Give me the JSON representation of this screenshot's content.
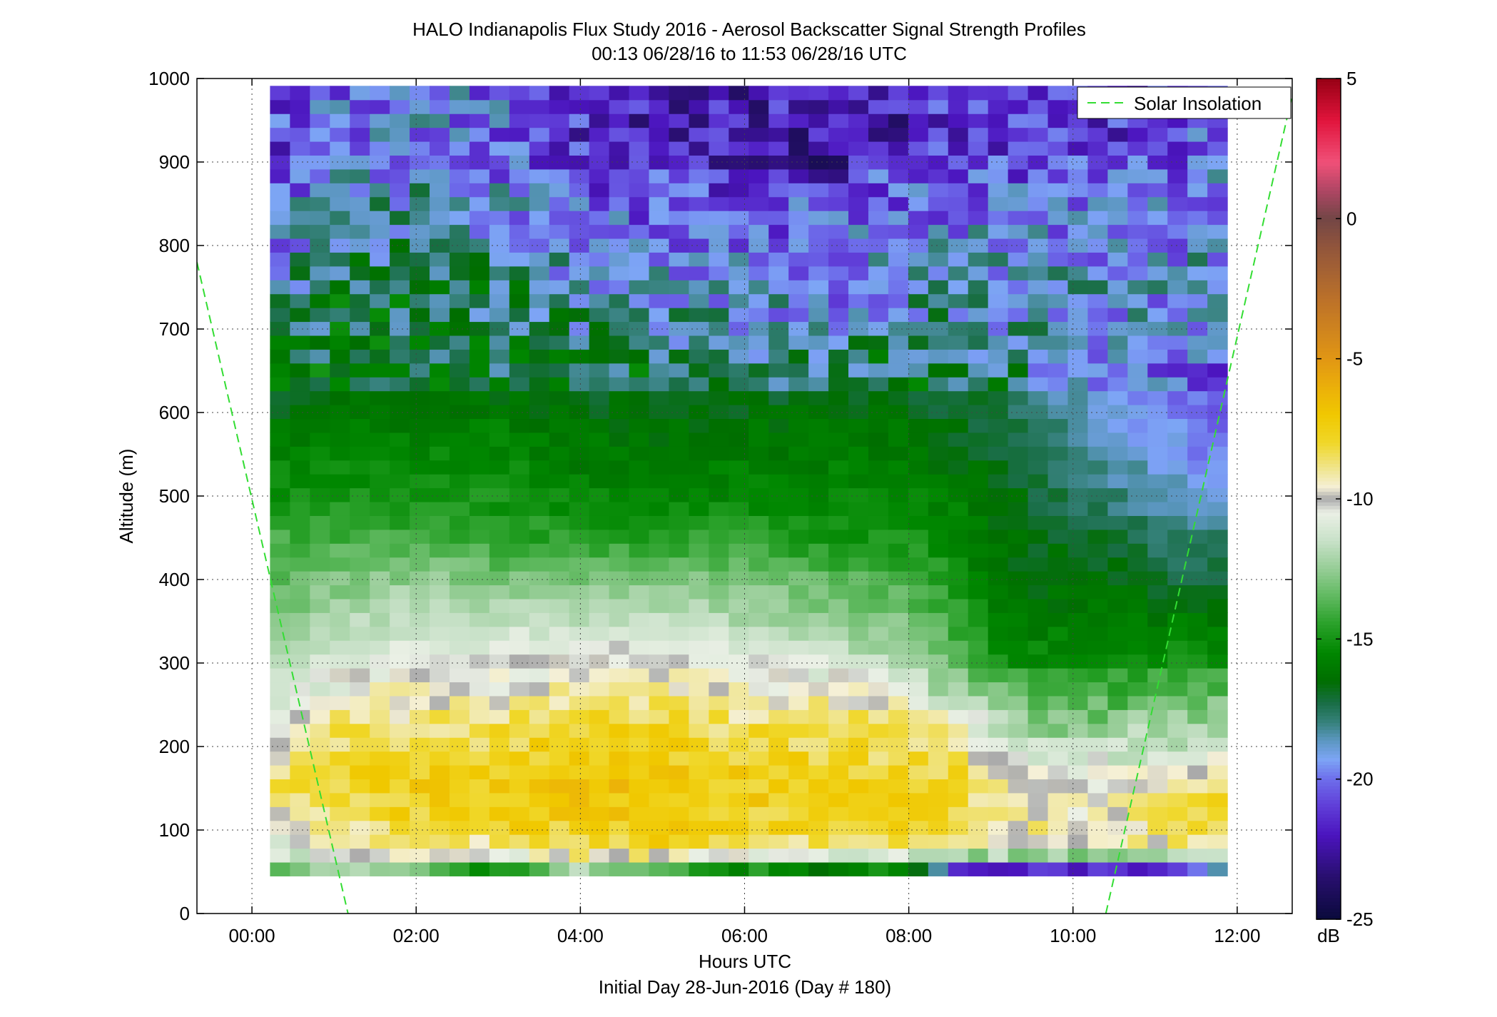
{
  "chart_data": {
    "type": "heatmap",
    "title": "HALO Indianapolis Flux Study 2016 - Aerosol Backscatter Signal Strength Profiles",
    "subtitle": "00:13 06/28/16 to 11:53 06/28/16  UTC",
    "xlabel": "Hours UTC",
    "xlabel2": "Initial Day 28-Jun-2016 (Day # 180)",
    "ylabel": "Altitude (m)",
    "xlim": [
      -0.67,
      12.67
    ],
    "ylim": [
      0,
      1000
    ],
    "x_ticks": [
      0,
      2,
      4,
      6,
      8,
      10,
      12
    ],
    "x_tick_labels": [
      "00:00",
      "02:00",
      "04:00",
      "06:00",
      "08:00",
      "10:00",
      "12:00"
    ],
    "y_ticks": [
      0,
      100,
      200,
      300,
      400,
      500,
      600,
      700,
      800,
      900,
      1000
    ],
    "y_tick_labels": [
      "0",
      "100",
      "200",
      "300",
      "400",
      "500",
      "600",
      "700",
      "800",
      "900",
      "1000"
    ],
    "grid": true,
    "colorbar": {
      "label": "dB",
      "range": [
        -25,
        5
      ],
      "ticks": [
        5,
        0,
        -5,
        -10,
        -15,
        -20,
        -25
      ],
      "tick_labels": [
        "5",
        "0",
        "-5",
        "-10",
        "-15",
        "-20",
        "-25"
      ]
    },
    "legend": {
      "position": "top-right",
      "entries": [
        "Solar Insolation"
      ]
    },
    "series": [
      {
        "name": "Solar Insolation",
        "color": "#33dd33",
        "style": "dashed",
        "segments": [
          {
            "x": [
              -0.67,
              1.17
            ],
            "y": [
              780,
              0
            ]
          },
          {
            "x": [
              10.4,
              12.67
            ],
            "y": [
              0,
              980
            ]
          }
        ]
      }
    ],
    "grid_x_start": 0.22,
    "grid_x_end": 11.88,
    "grid_y_start": 45,
    "grid_y_step": 16.6,
    "anchor_times": [
      0.3,
      1.0,
      2.0,
      3.0,
      4.0,
      5.0,
      6.0,
      7.0,
      8.0,
      8.6,
      9.2,
      10.0,
      11.0,
      11.85
    ],
    "anchor_altitudes": [
      50,
      75,
      100,
      130,
      160,
      200,
      230,
      260,
      300,
      350,
      400,
      450,
      500,
      550,
      600,
      650,
      700,
      750,
      800,
      850,
      900,
      950,
      990
    ],
    "anchor_values_db": [
      [
        -13,
        -13,
        -13,
        -16,
        -13,
        -15,
        -16,
        -17,
        -16,
        -23,
        -23,
        -23,
        -24,
        -20
      ],
      [
        -11,
        -10,
        -9.5,
        -9.5,
        -8,
        -8,
        -9,
        -9,
        -9.5,
        -9.5,
        -9.5,
        -10,
        -9.5,
        -9
      ],
      [
        -10,
        -9,
        -8,
        -8,
        -7.5,
        -7.5,
        -8,
        -8,
        -8,
        -8.5,
        -9,
        -9.5,
        -9,
        -8.5
      ],
      [
        -9,
        -8,
        -7.5,
        -7.5,
        -7,
        -7,
        -7.5,
        -7.5,
        -7.5,
        -8,
        -9,
        -10,
        -9,
        -8
      ],
      [
        -8.5,
        -8,
        -7.5,
        -7.5,
        -7,
        -7,
        -7.5,
        -7.5,
        -7.5,
        -8,
        -9,
        -10,
        -9.5,
        -8.5
      ],
      [
        -9.5,
        -8.5,
        -8,
        -8,
        -7.5,
        -7.5,
        -8,
        -8,
        -8.5,
        -9,
        -11,
        -12,
        -11.5,
        -11
      ],
      [
        -10,
        -9,
        -8.5,
        -8.5,
        -8,
        -8,
        -8.5,
        -8.5,
        -9,
        -10,
        -12,
        -13,
        -12.5,
        -12
      ],
      [
        -11,
        -10,
        -9.5,
        -9.5,
        -9,
        -9,
        -9.5,
        -9.5,
        -10.5,
        -12,
        -13.5,
        -14,
        -14,
        -13.5
      ],
      [
        -12,
        -11,
        -10.5,
        -10.5,
        -10,
        -10,
        -10.5,
        -11,
        -12,
        -13.5,
        -15,
        -15.5,
        -15,
        -15
      ],
      [
        -13,
        -12,
        -11.5,
        -11.5,
        -11.5,
        -11.5,
        -12,
        -12.5,
        -13,
        -14.5,
        -16,
        -16,
        -16,
        -16
      ],
      [
        -13.5,
        -13,
        -12.5,
        -13,
        -13,
        -13,
        -13,
        -13.5,
        -14,
        -15,
        -16.5,
        -16.5,
        -17,
        -17
      ],
      [
        -14,
        -14,
        -14,
        -14.5,
        -14.5,
        -14.5,
        -14.5,
        -15,
        -15,
        -15.5,
        -16.5,
        -17,
        -17.5,
        -18
      ],
      [
        -15,
        -15,
        -15,
        -15,
        -15.5,
        -15.5,
        -15.5,
        -15.5,
        -15.5,
        -16,
        -16.5,
        -17.5,
        -18.5,
        -19
      ],
      [
        -15.5,
        -15.5,
        -15.5,
        -15.5,
        -16,
        -16,
        -16,
        -16,
        -16,
        -16.5,
        -17,
        -18,
        -19,
        -20
      ],
      [
        -16.5,
        -16,
        -16,
        -16,
        -16.5,
        -16.5,
        -16.5,
        -16.5,
        -16.5,
        -17,
        -17.5,
        -18.5,
        -19.5,
        -20.5
      ],
      [
        -17,
        -16.5,
        -16.5,
        -17,
        -17,
        -17,
        -17.5,
        -17.5,
        -17,
        -17,
        -18,
        -19,
        -20,
        -20.5
      ],
      [
        -17.5,
        -17,
        -17,
        -17.5,
        -18,
        -18.5,
        -18.5,
        -19,
        -18,
        -18,
        -18.5,
        -19,
        -19.5,
        -20
      ],
      [
        -18.5,
        -17,
        -17,
        -17.5,
        -18.5,
        -19,
        -19,
        -20,
        -19,
        -18.5,
        -18.5,
        -19,
        -19,
        -19
      ],
      [
        -19.5,
        -18,
        -18,
        -18.5,
        -19.5,
        -20,
        -20,
        -20.5,
        -19.5,
        -19,
        -19,
        -19.5,
        -19.5,
        -19
      ],
      [
        -20,
        -19,
        -18.5,
        -19,
        -20,
        -20.5,
        -20.5,
        -20.5,
        -20,
        -20,
        -20,
        -20,
        -20,
        -19.5
      ],
      [
        -21,
        -20,
        -19.5,
        -20,
        -21,
        -21.5,
        -22.5,
        -23,
        -20,
        -21,
        -21,
        -21,
        -20.5,
        -20
      ],
      [
        -21,
        -20,
        -19.5,
        -20,
        -21.5,
        -22,
        -22,
        -22.5,
        -22,
        -21.5,
        -21.5,
        -21.5,
        -21,
        -20.5
      ],
      [
        -20.5,
        -20,
        -19.5,
        -20,
        -21.5,
        -22.5,
        -22,
        -21.5,
        -21,
        -21,
        -20.5,
        -21,
        -21,
        -20.5
      ]
    ]
  }
}
